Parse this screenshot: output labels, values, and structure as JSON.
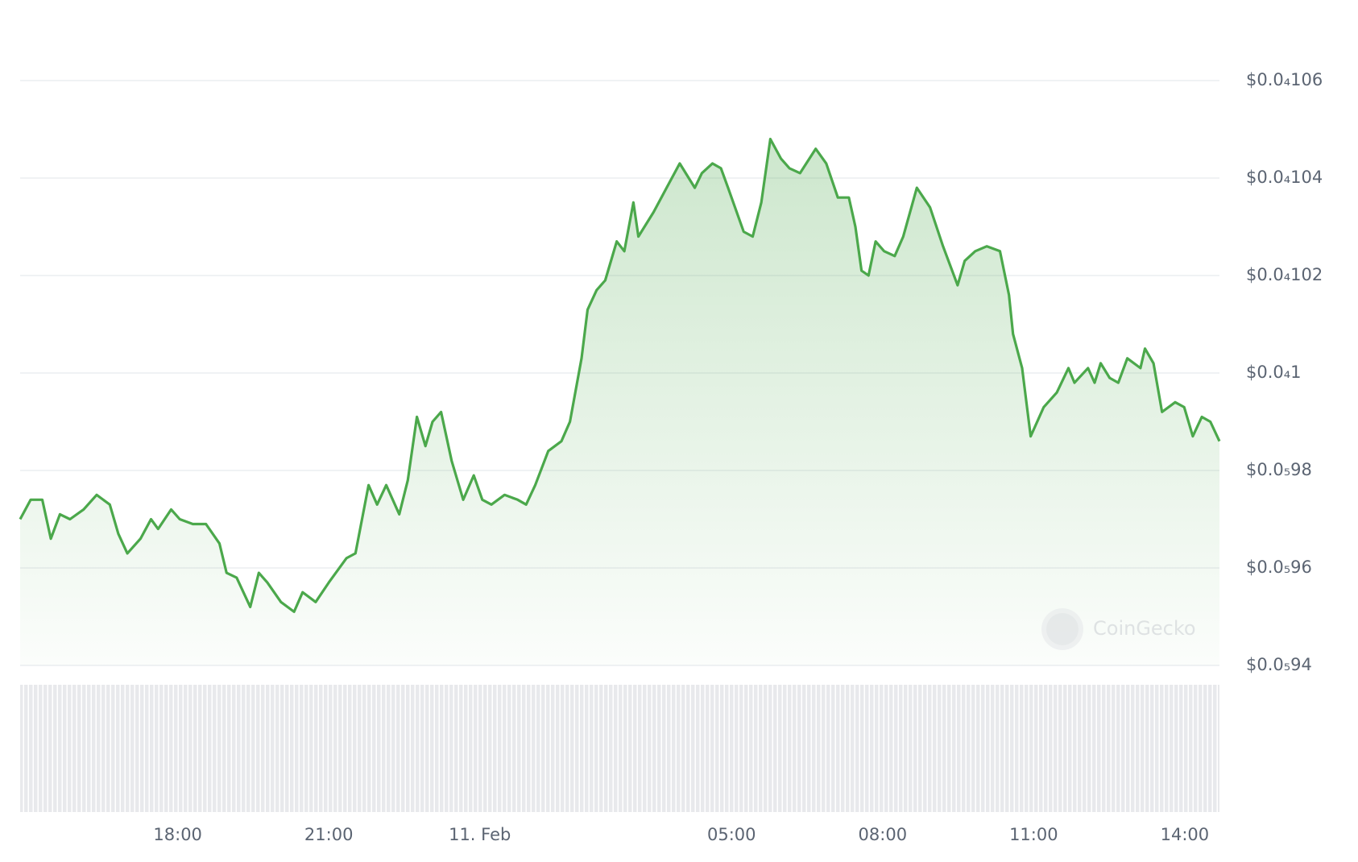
{
  "chart_data": {
    "type": "line",
    "watermark": "CoinGecko",
    "grid": true,
    "xlim": [
      -9.13,
      14.69
    ],
    "xticks": [
      {
        "value": -6,
        "label": "18:00"
      },
      {
        "value": -3,
        "label": "21:00"
      },
      {
        "value": 0,
        "label": "11. Feb"
      },
      {
        "value": 5,
        "label": "05:00"
      },
      {
        "value": 8,
        "label": "08:00"
      },
      {
        "value": 11,
        "label": "11:00"
      },
      {
        "value": 14,
        "label": "14:00"
      }
    ],
    "ylim": [
      9.4e-06,
      1.06e-05
    ],
    "yticks": [
      {
        "value": 9.4e-06,
        "label": "$0.0₅94"
      },
      {
        "value": 9.6e-06,
        "label": "$0.0₅96"
      },
      {
        "value": 9.8e-06,
        "label": "$0.0₅98"
      },
      {
        "value": 1e-05,
        "label": "$0.0₄1"
      },
      {
        "value": 1.02e-05,
        "label": "$0.0₄102"
      },
      {
        "value": 1.04e-05,
        "label": "$0.0₄104"
      },
      {
        "value": 1.06e-05,
        "label": "$0.0₄106"
      }
    ],
    "x": [
      -9.13,
      -8.92,
      -8.69,
      -8.52,
      -8.34,
      -8.14,
      -7.87,
      -7.61,
      -7.35,
      -7.18,
      -7.0,
      -6.74,
      -6.53,
      -6.39,
      -6.13,
      -5.96,
      -5.7,
      -5.44,
      -5.17,
      -5.03,
      -4.83,
      -4.56,
      -4.39,
      -4.22,
      -3.95,
      -3.69,
      -3.52,
      -3.26,
      -3.0,
      -2.65,
      -2.47,
      -2.21,
      -2.04,
      -1.86,
      -1.6,
      -1.43,
      -1.25,
      -1.08,
      -0.94,
      -0.77,
      -0.56,
      -0.33,
      -0.12,
      0.05,
      0.23,
      0.49,
      0.75,
      0.92,
      1.1,
      1.36,
      1.62,
      1.79,
      2.02,
      2.14,
      2.32,
      2.49,
      2.72,
      2.87,
      3.05,
      3.15,
      3.45,
      3.71,
      3.97,
      4.27,
      4.41,
      4.62,
      4.79,
      4.93,
      5.24,
      5.42,
      5.59,
      5.77,
      5.98,
      6.15,
      6.36,
      6.67,
      6.88,
      7.11,
      7.33,
      7.46,
      7.58,
      7.72,
      7.86,
      8.03,
      8.24,
      8.41,
      8.68,
      8.94,
      9.2,
      9.49,
      9.63,
      9.84,
      10.07,
      10.33,
      10.51,
      10.59,
      10.77,
      10.94,
      11.2,
      11.46,
      11.69,
      11.81,
      12.08,
      12.21,
      12.33,
      12.51,
      12.68,
      12.86,
      13.12,
      13.21,
      13.38,
      13.55,
      13.81,
      13.99,
      14.16,
      14.34,
      14.51,
      14.69
    ],
    "series": [
      {
        "color": "#4ba84b",
        "values": [
          9.7e-06,
          9.74e-06,
          9.74e-06,
          9.66e-06,
          9.71e-06,
          9.7e-06,
          9.72e-06,
          9.75e-06,
          9.73e-06,
          9.67e-06,
          9.63e-06,
          9.66e-06,
          9.7e-06,
          9.68e-06,
          9.72e-06,
          9.7e-06,
          9.69e-06,
          9.69e-06,
          9.65e-06,
          9.59e-06,
          9.58e-06,
          9.52e-06,
          9.59e-06,
          9.57e-06,
          9.53e-06,
          9.51e-06,
          9.55e-06,
          9.53e-06,
          9.57e-06,
          9.62e-06,
          9.63e-06,
          9.77e-06,
          9.73e-06,
          9.77e-06,
          9.71e-06,
          9.78e-06,
          9.91e-06,
          9.85e-06,
          9.9e-06,
          9.92e-06,
          9.82e-06,
          9.74e-06,
          9.79e-06,
          9.74e-06,
          9.73e-06,
          9.75e-06,
          9.74e-06,
          9.73e-06,
          9.77e-06,
          9.84e-06,
          9.86e-06,
          9.9e-06,
          1.003e-05,
          1.013e-05,
          1.017e-05,
          1.019e-05,
          1.027e-05,
          1.025e-05,
          1.035e-05,
          1.028e-05,
          1.033e-05,
          1.038e-05,
          1.043e-05,
          1.038e-05,
          1.041e-05,
          1.043e-05,
          1.042e-05,
          1.038e-05,
          1.029e-05,
          1.028e-05,
          1.035e-05,
          1.048e-05,
          1.044e-05,
          1.042e-05,
          1.041e-05,
          1.046e-05,
          1.043e-05,
          1.036e-05,
          1.036e-05,
          1.03e-05,
          1.021e-05,
          1.02e-05,
          1.027e-05,
          1.025e-05,
          1.024e-05,
          1.028e-05,
          1.038e-05,
          1.034e-05,
          1.026e-05,
          1.018e-05,
          1.023e-05,
          1.025e-05,
          1.026e-05,
          1.025e-05,
          1.016e-05,
          1.008e-05,
          1.001e-05,
          9.87e-06,
          9.93e-06,
          9.96e-06,
          1.001e-05,
          9.98e-06,
          1.001e-05,
          9.98e-06,
          1.002e-05,
          9.99e-06,
          9.98e-06,
          1.003e-05,
          1.001e-05,
          1.005e-05,
          1.002e-05,
          9.92e-06,
          9.94e-06,
          9.93e-06,
          9.87e-06,
          9.91e-06,
          9.9e-06,
          9.86e-06
        ]
      }
    ]
  }
}
